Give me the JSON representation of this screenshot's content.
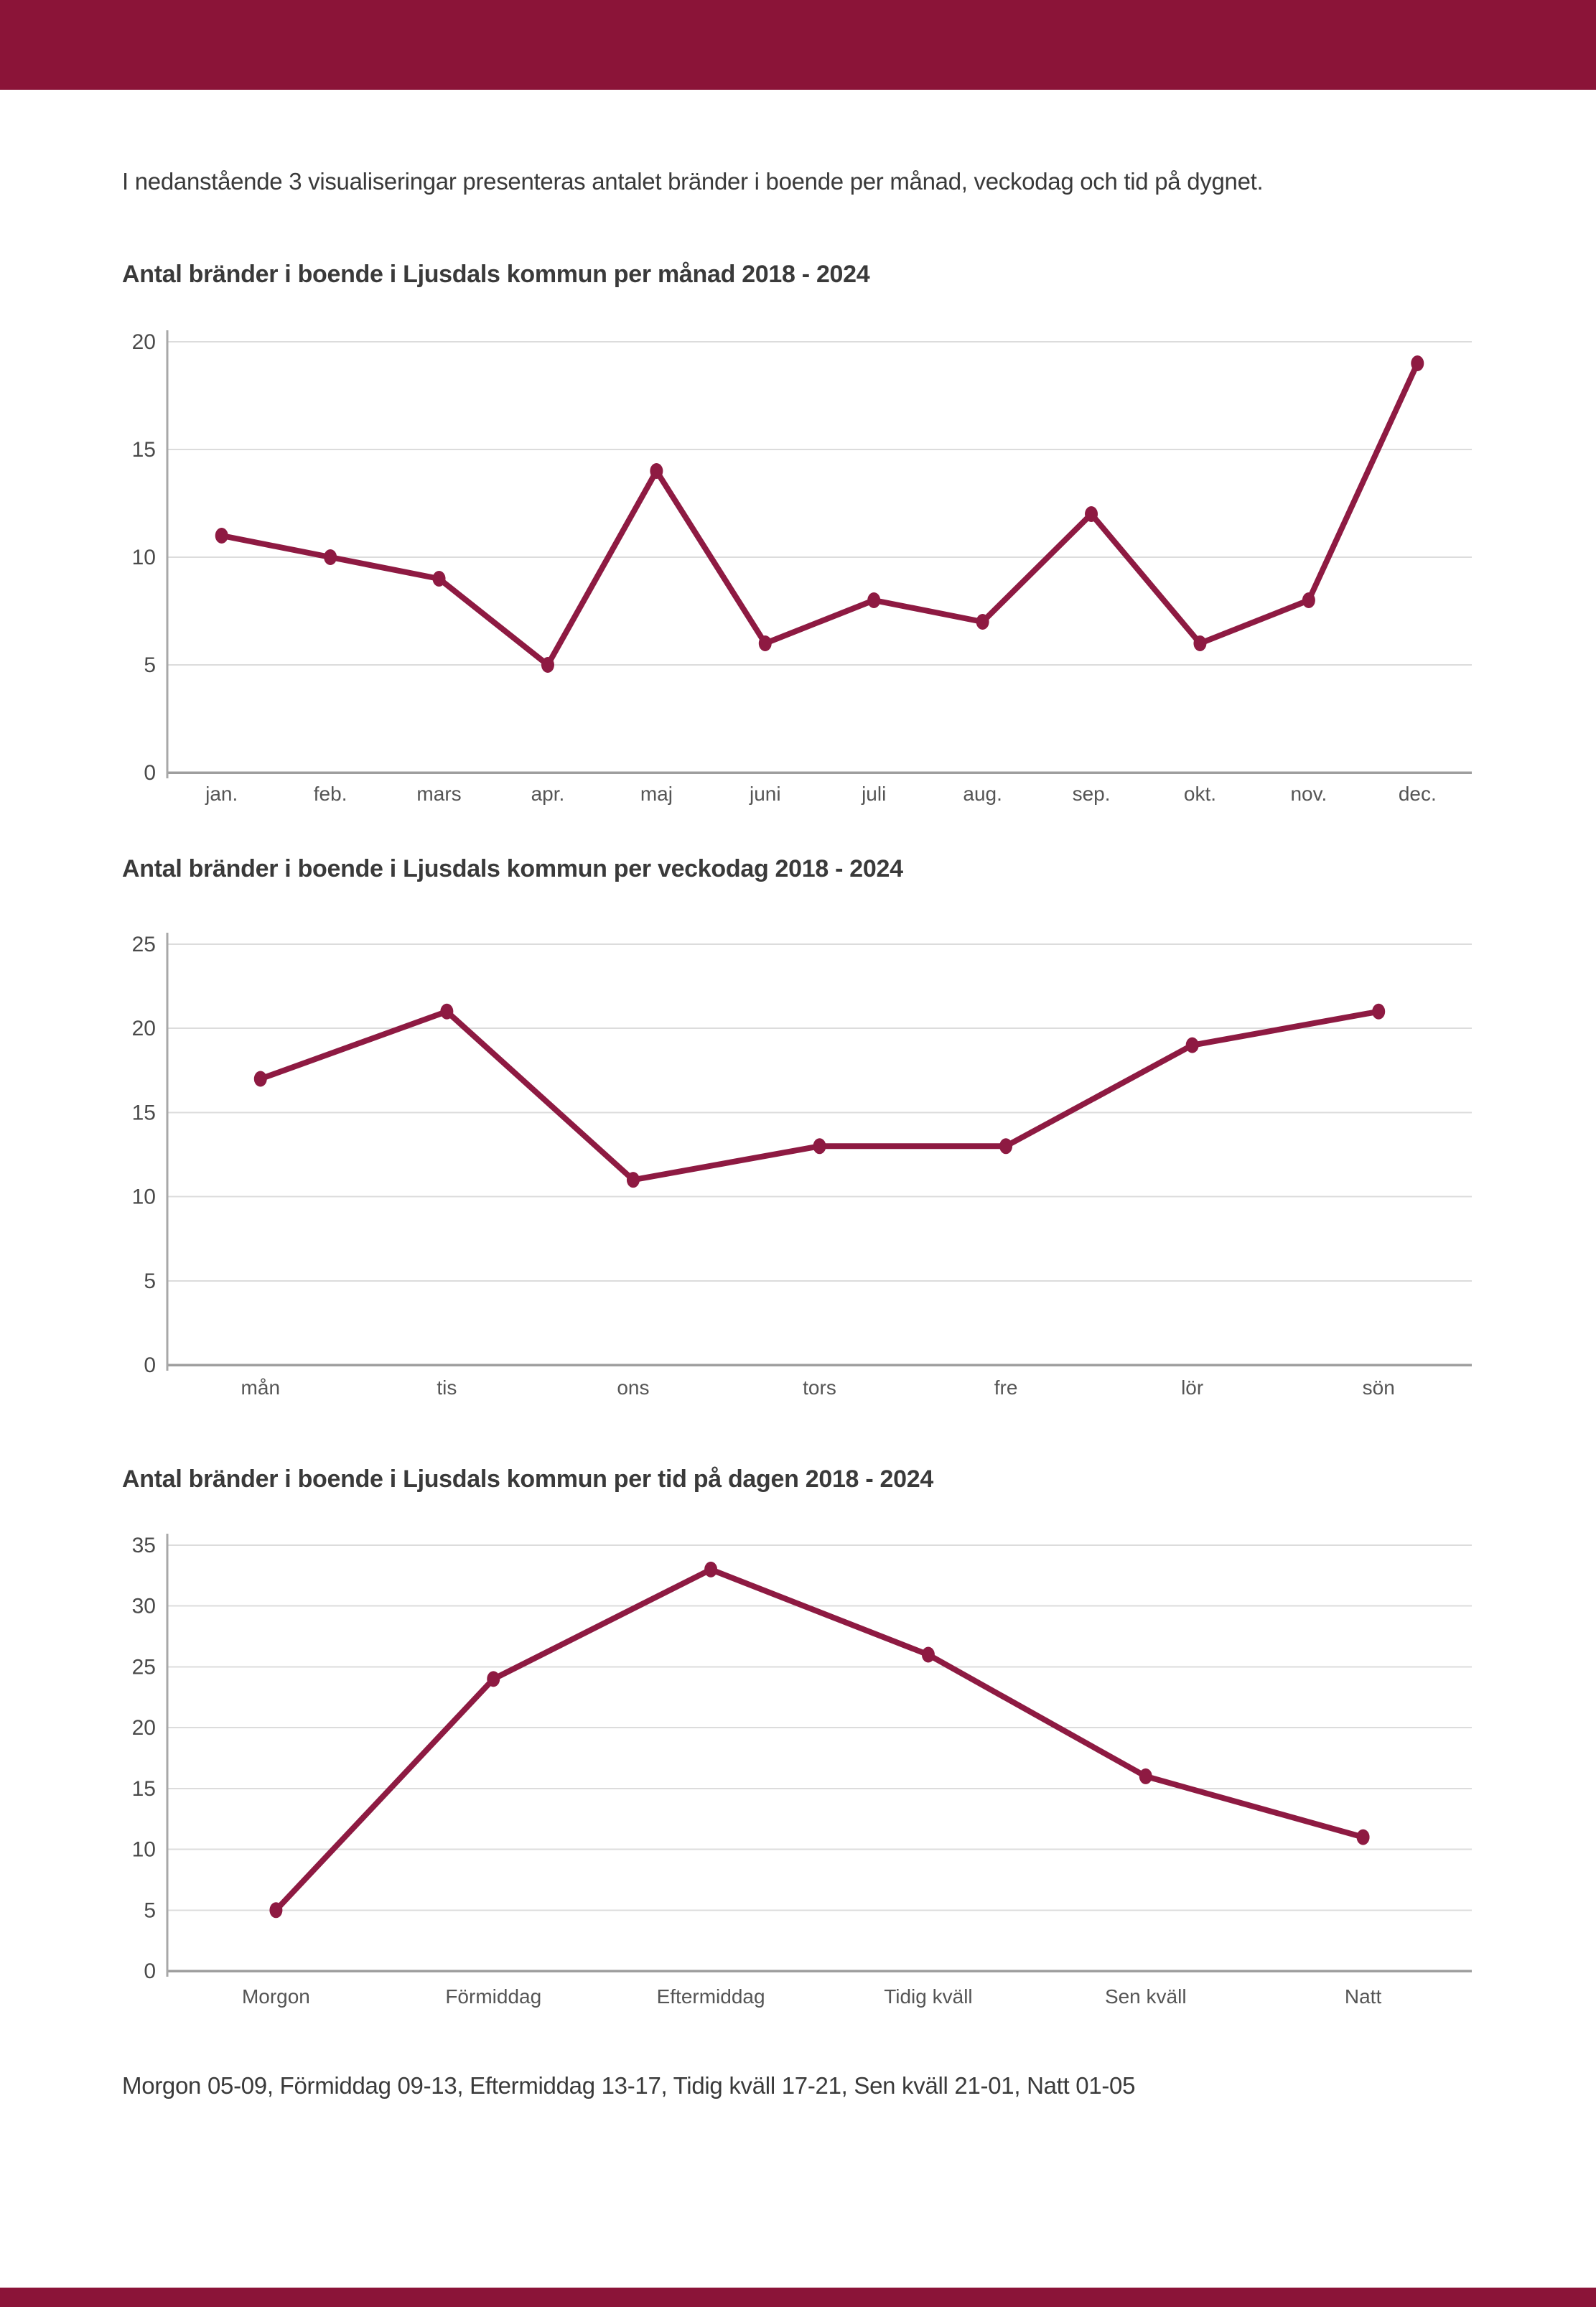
{
  "page": {
    "intro": "I nedanstående 3 visualiseringar presenteras antalet bränder i boende per månad, veckodag och tid på dygnet.",
    "footnote": "Morgon 05-09, Förmiddag 09-13, Eftermiddag 13-17, Tidig kväll 17-21, Sen kväll 21-01, Natt 01-05",
    "accent_color": "#8B1438",
    "line_color": "#8E1A42",
    "grid_color": "#dcdcdc",
    "axis_color": "#a8a8a8",
    "zero_line_color": "#9e9e9e",
    "tick_label_color": "#4a4a4a",
    "category_label_color": "#555555"
  },
  "chart_data": [
    {
      "type": "line",
      "title": "Antal bränder i boende i Ljusdals kommun per månad 2018 - 2024",
      "categories": [
        "jan.",
        "feb.",
        "mars",
        "apr.",
        "maj",
        "juni",
        "juli",
        "aug.",
        "sep.",
        "okt.",
        "nov.",
        "dec."
      ],
      "values": [
        11,
        10,
        9,
        5,
        14,
        6,
        8,
        7,
        12,
        6,
        8,
        19
      ],
      "xlabel": "",
      "ylabel": "",
      "ylim": [
        0,
        20
      ],
      "yticks": [
        0,
        5,
        10,
        15,
        20
      ],
      "grid": true,
      "legend": "none",
      "marker": "dot"
    },
    {
      "type": "line",
      "title": "Antal bränder i boende i Ljusdals kommun per veckodag 2018 - 2024",
      "categories": [
        "mån",
        "tis",
        "ons",
        "tors",
        "fre",
        "lör",
        "sön"
      ],
      "values": [
        17,
        21,
        11,
        13,
        13,
        19,
        21
      ],
      "xlabel": "",
      "ylabel": "",
      "ylim": [
        0,
        25
      ],
      "yticks": [
        0,
        5,
        10,
        15,
        20,
        25
      ],
      "grid": true,
      "legend": "none",
      "marker": "dot"
    },
    {
      "type": "line",
      "title": "Antal bränder i boende i Ljusdals kommun per tid på dagen 2018 - 2024",
      "categories": [
        "Morgon",
        "Förmiddag",
        "Eftermiddag",
        "Tidig kväll",
        "Sen kväll",
        "Natt"
      ],
      "values": [
        5,
        24,
        33,
        26,
        16,
        11
      ],
      "xlabel": "",
      "ylabel": "",
      "ylim": [
        0,
        35
      ],
      "yticks": [
        0,
        5,
        10,
        15,
        20,
        25,
        30,
        35
      ],
      "grid": true,
      "legend": "none",
      "marker": "dot"
    }
  ]
}
